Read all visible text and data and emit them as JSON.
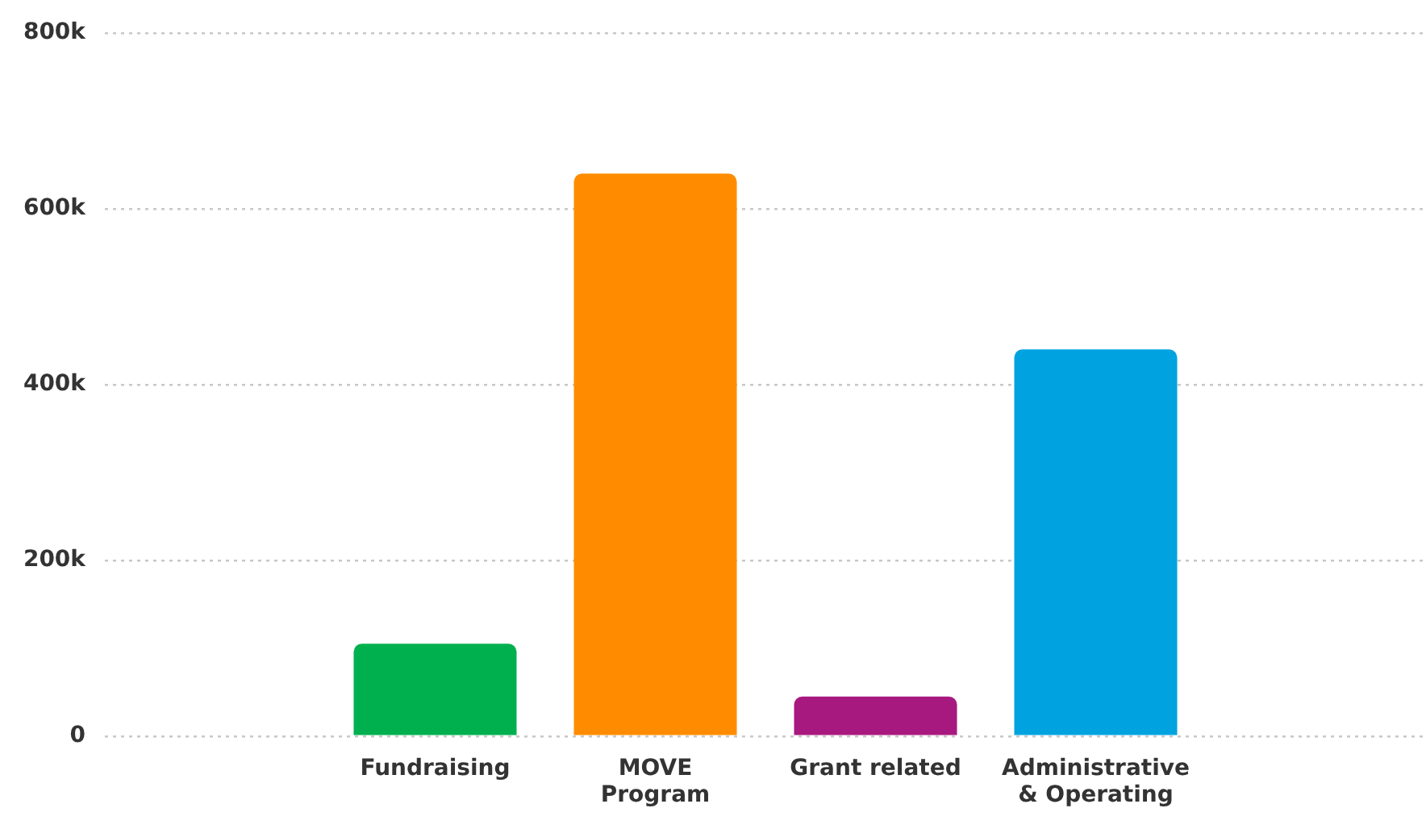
{
  "chart_data": {
    "type": "bar",
    "categories": [
      null,
      "Fundraising",
      "MOVE\nProgram",
      "Grant related",
      "Administrative\n& Operating",
      null
    ],
    "values": [
      null,
      105000,
      640000,
      45000,
      440000,
      null
    ],
    "colors": [
      null,
      "#00b04f",
      "#ff8c00",
      "#a8197f",
      "#00a3e0",
      null
    ],
    "ylim": [
      0,
      800000
    ],
    "yticks": [
      {
        "value": 0,
        "label": "0"
      },
      {
        "value": 200000,
        "label": "200k"
      },
      {
        "value": 400000,
        "label": "400k"
      },
      {
        "value": 600000,
        "label": "600k"
      },
      {
        "value": 800000,
        "label": "800k"
      }
    ],
    "grid": "y",
    "legend": false
  }
}
